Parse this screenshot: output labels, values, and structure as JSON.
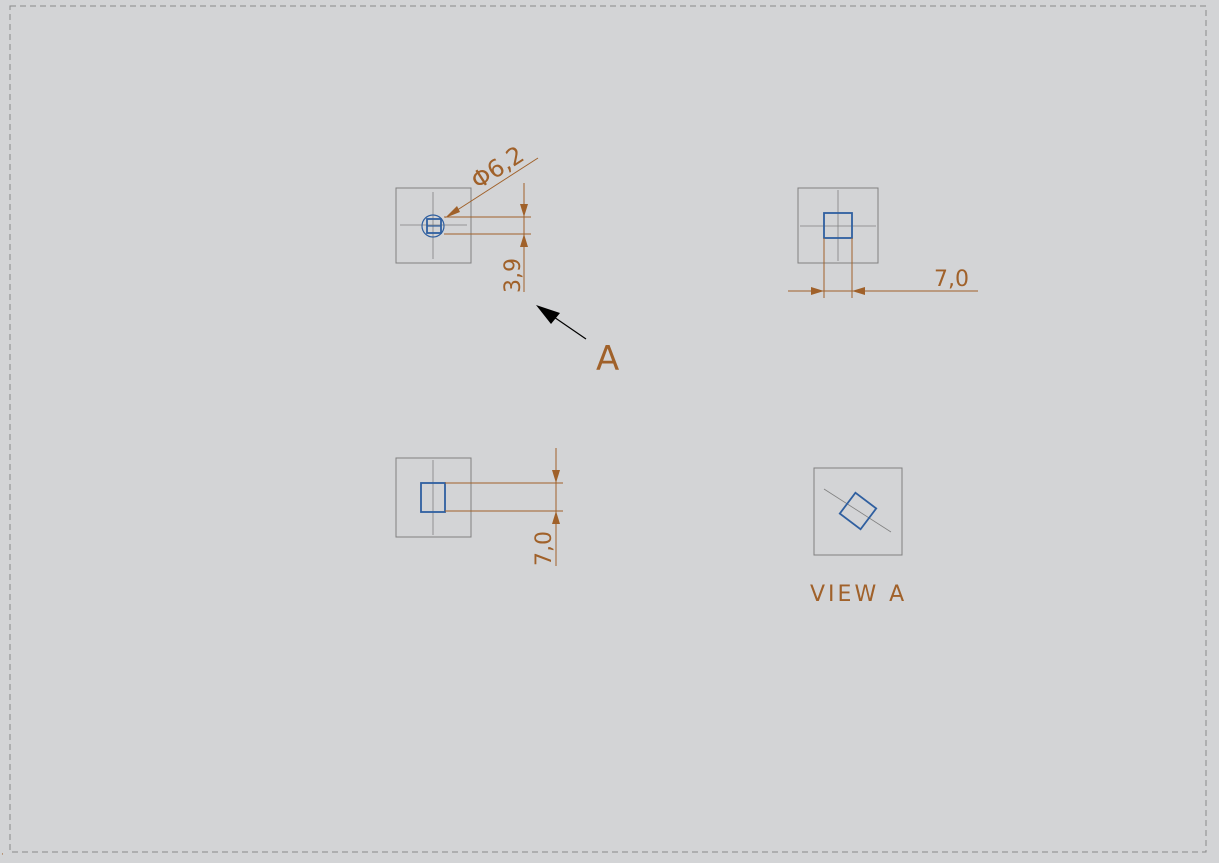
{
  "drawing": {
    "views": {
      "top_left": {
        "dim_diameter": "Φ6,2",
        "dim_height": "3,9"
      },
      "top_right": {
        "dim_width": "7,0"
      },
      "bottom_left": {
        "dim_height": "7,0"
      },
      "aux_view": {
        "caption": "VIEW A"
      }
    },
    "view_indicator": {
      "letter": "A"
    }
  },
  "colors": {
    "dimension": "#a0612a",
    "feature": "#2f5fa0",
    "frame": "#808080",
    "background": "#d3d4d6"
  }
}
